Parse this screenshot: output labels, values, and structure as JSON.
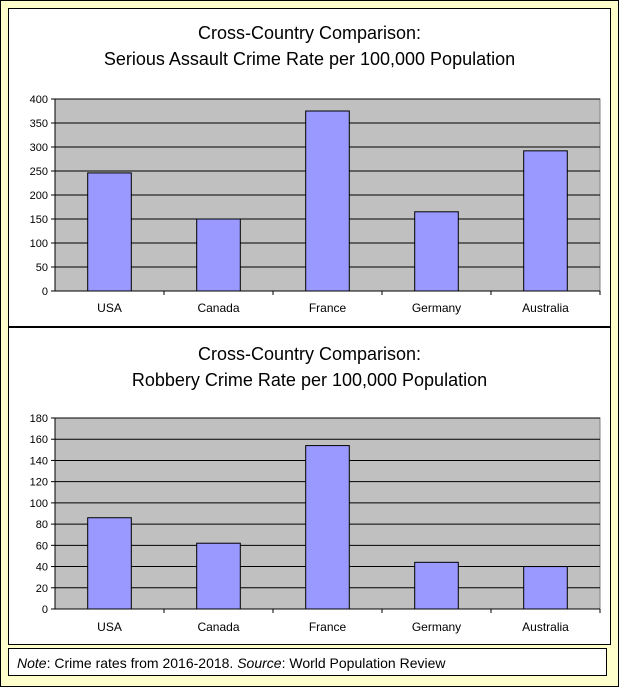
{
  "footer": {
    "note_label": "Note",
    "note_text": ": Crime rates from 2016-2018. ",
    "source_label": "Source",
    "source_text": ": World Population Review"
  },
  "chart_data": [
    {
      "type": "bar",
      "title_line1": "Cross-Country Comparison:",
      "title_line2": "Serious Assault Crime Rate per 100,000 Population",
      "categories": [
        "USA",
        "Canada",
        "France",
        "Germany",
        "Australia"
      ],
      "values": [
        246,
        150,
        375,
        165,
        292
      ],
      "ylim": [
        0,
        400
      ],
      "yticks": [
        0,
        50,
        100,
        150,
        200,
        250,
        300,
        350,
        400
      ],
      "grid": true,
      "plot_bg": "#c0c0c0",
      "bar_color": "#9999ff"
    },
    {
      "type": "bar",
      "title_line1": "Cross-Country Comparison:",
      "title_line2": "Robbery Crime Rate per 100,000 Population",
      "categories": [
        "USA",
        "Canada",
        "France",
        "Germany",
        "Australia"
      ],
      "values": [
        86,
        62,
        154,
        44,
        40
      ],
      "ylim": [
        0,
        180
      ],
      "yticks": [
        0,
        20,
        40,
        60,
        80,
        100,
        120,
        140,
        160,
        180
      ],
      "grid": true,
      "plot_bg": "#c0c0c0",
      "bar_color": "#9999ff"
    }
  ]
}
